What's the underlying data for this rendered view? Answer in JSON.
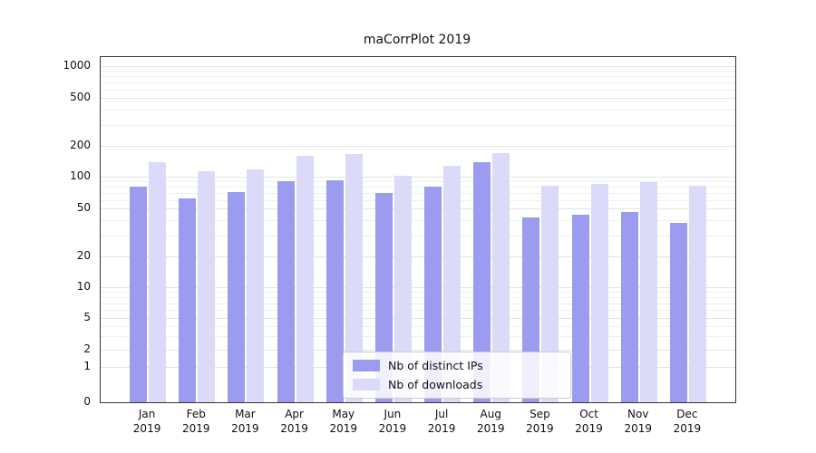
{
  "chart_data": {
    "type": "bar",
    "title": "maCorrPlot 2019",
    "categories": [
      "Jan",
      "Feb",
      "Mar",
      "Apr",
      "May",
      "Jun",
      "Jul",
      "Aug",
      "Sep",
      "Oct",
      "Nov",
      "Dec"
    ],
    "year_label": "2019",
    "series": [
      {
        "name": "Nb of distinct IPs",
        "color": "#9b9bef",
        "values": [
          80,
          62,
          72,
          90,
          93,
          70,
          80,
          140,
          42,
          44,
          47,
          38
        ]
      },
      {
        "name": "Nb of downloads",
        "color": "#dbdbf9",
        "values": [
          138,
          112,
          118,
          160,
          165,
          103,
          128,
          170,
          82,
          85,
          88,
          82
        ]
      }
    ],
    "y_ticks": [
      0,
      1,
      2,
      5,
      10,
      20,
      50,
      100,
      200,
      500,
      1000
    ],
    "ylim": [
      0,
      1000
    ],
    "y_scale": "symlog",
    "xlabel": "",
    "ylabel": "",
    "grid": "horizontal",
    "legend_position": "lower-center"
  },
  "colors": {
    "grid_major": "#e4e4e4",
    "grid_minor": "#f0f0f0",
    "spine": "#333333",
    "legend_border": "#cccccc"
  }
}
